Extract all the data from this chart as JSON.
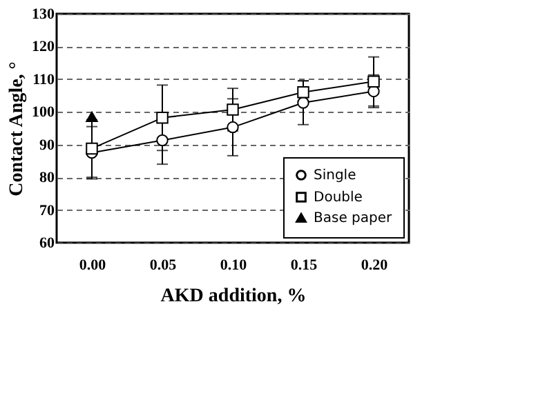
{
  "chart_data": {
    "type": "line",
    "xlabel": "AKD addition, %",
    "ylabel": "Contact Angle, °",
    "categories": [
      "0.00",
      "0.05",
      "0.10",
      "0.15",
      "0.20"
    ],
    "ylim": [
      60,
      130
    ],
    "yticks": [
      60,
      70,
      80,
      90,
      100,
      110,
      120,
      130
    ],
    "grid": "y",
    "legend": "bottom right",
    "series": [
      {
        "name": "Single",
        "color": "#000000",
        "marker": "circle",
        "values": [
          87.5,
          91.3,
          95.3,
          102.8,
          106.3
        ],
        "errors": [
          8,
          7.3,
          8.7,
          6.7,
          5
        ]
      },
      {
        "name": "Double",
        "color": "#000000",
        "marker": "square",
        "values": [
          88.8,
          98.2,
          100.7,
          106.0,
          109.3
        ],
        "errors": [
          8.8,
          10,
          6.5,
          3.5,
          7.5
        ]
      },
      {
        "name": "Base paper",
        "type": "scatter",
        "color": "#000000",
        "marker": "triangle",
        "values": [
          98.5,
          null,
          null,
          null,
          null
        ]
      }
    ]
  }
}
